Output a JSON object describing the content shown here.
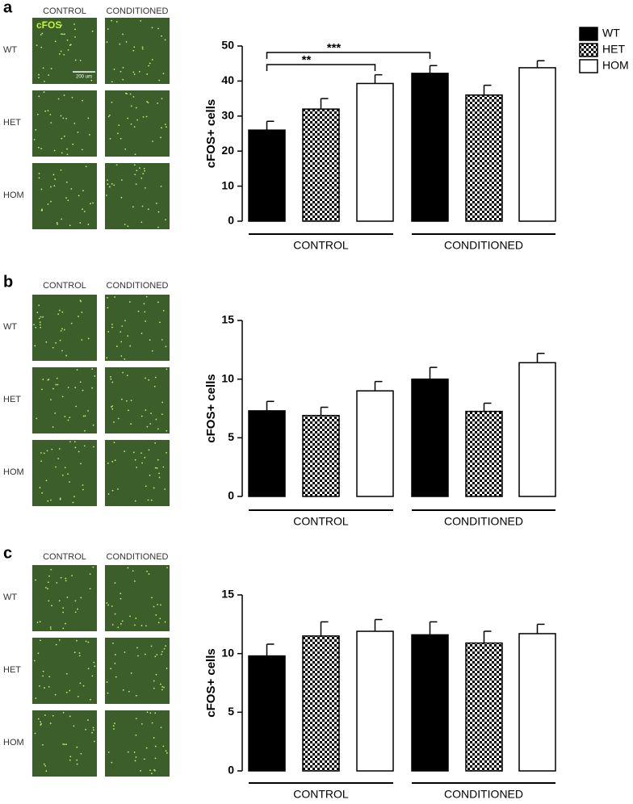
{
  "panels": [
    {
      "label": "a",
      "columns": [
        "CONTROL",
        "CONDITIONED"
      ],
      "rows": [
        "WT",
        "HET",
        "HOM"
      ],
      "image_label": "cFOS",
      "scale_bar": "200 um"
    },
    {
      "label": "b",
      "columns": [
        "CONTROL",
        "CONDITIONED"
      ],
      "rows": [
        "WT",
        "HET",
        "HOM"
      ]
    },
    {
      "label": "c",
      "columns": [
        "CONTROL",
        "CONDITIONED"
      ],
      "rows": [
        "WT",
        "HET",
        "HOM"
      ]
    }
  ],
  "chart_data": [
    {
      "type": "bar",
      "y_label": "cFOS+ cells",
      "categories": [
        "CONTROL",
        "CONDITIONED"
      ],
      "series": [
        {
          "name": "WT",
          "color": "#000000",
          "values": [
            26,
            42.2
          ],
          "errors": [
            2.5,
            2.2
          ]
        },
        {
          "name": "HET",
          "color": "#000000",
          "pattern": "checker",
          "values": [
            32,
            36
          ],
          "errors": [
            3,
            2.8
          ]
        },
        {
          "name": "HOM",
          "color": "#ffffff",
          "values": [
            39.3,
            43.8
          ],
          "errors": [
            2.5,
            2
          ]
        }
      ],
      "ylim": [
        0,
        50
      ],
      "yticks": [
        0,
        10,
        20,
        30,
        40,
        50
      ],
      "legend": "top-right",
      "annotations": [
        {
          "text": "***"
        },
        {
          "text": "**"
        }
      ]
    },
    {
      "type": "bar",
      "y_label": "cFOS+ cells",
      "categories": [
        "CONTROL",
        "CONDITIONED"
      ],
      "series": [
        {
          "name": "WT",
          "color": "#000000",
          "values": [
            7.3,
            10
          ],
          "errors": [
            0.8,
            1
          ]
        },
        {
          "name": "HET",
          "color": "#000000",
          "pattern": "checker",
          "values": [
            6.9,
            7.25
          ],
          "errors": [
            0.7,
            0.7
          ]
        },
        {
          "name": "HOM",
          "color": "#ffffff",
          "values": [
            9,
            11.4
          ],
          "errors": [
            0.8,
            0.8
          ]
        }
      ],
      "ylim": [
        0,
        15
      ],
      "yticks": [
        0,
        5,
        10,
        15
      ]
    },
    {
      "type": "bar",
      "y_label": "cFOS+ cells",
      "categories": [
        "CONTROL",
        "CONDITIONED"
      ],
      "series": [
        {
          "name": "WT",
          "color": "#000000",
          "values": [
            9.8,
            11.6
          ],
          "errors": [
            1,
            1.1
          ]
        },
        {
          "name": "HET",
          "color": "#000000",
          "pattern": "checker",
          "values": [
            11.5,
            10.9
          ],
          "errors": [
            1.2,
            1
          ]
        },
        {
          "name": "HOM",
          "color": "#ffffff",
          "values": [
            11.9,
            11.7
          ],
          "errors": [
            1,
            0.8
          ]
        }
      ],
      "ylim": [
        0,
        15
      ],
      "yticks": [
        0,
        5,
        10,
        15
      ]
    }
  ]
}
